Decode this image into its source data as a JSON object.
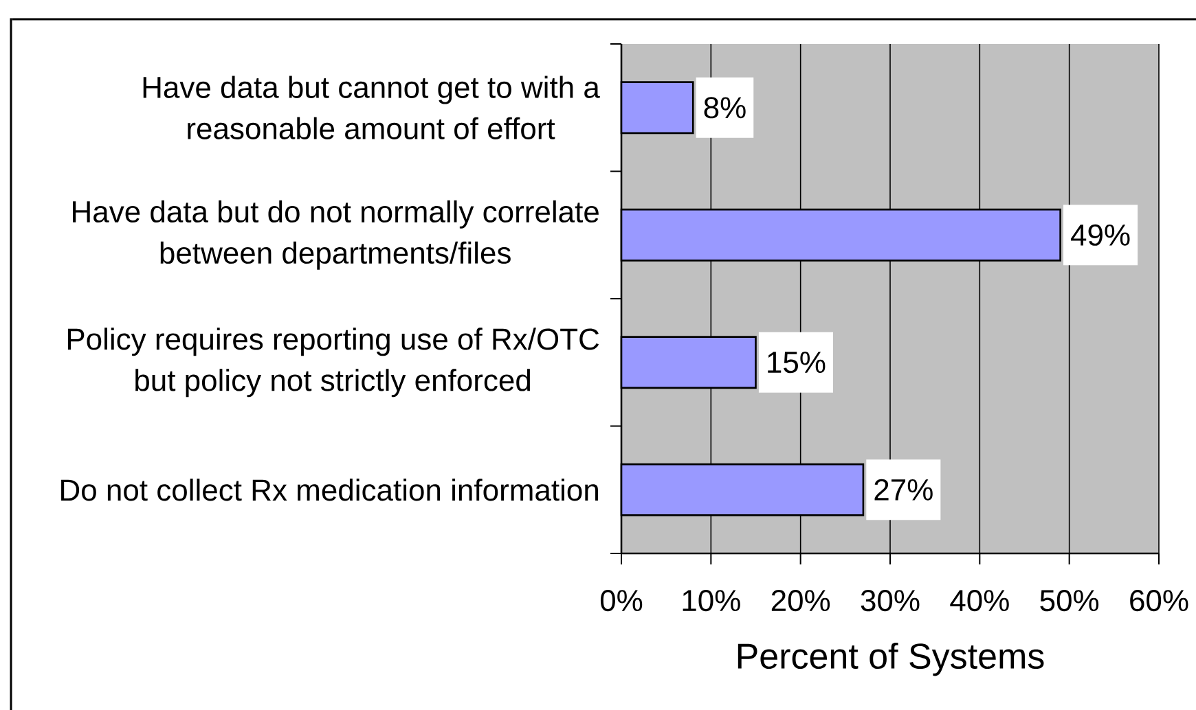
{
  "chart_data": {
    "type": "bar",
    "orientation": "horizontal",
    "categories": [
      "Have data but cannot get to with a reasonable amount of effort",
      "Have data but do not normally correlate between departments/files",
      "Policy requires reporting use of Rx/OTC but policy not strictly enforced",
      "Do not collect Rx medication information"
    ],
    "values": [
      8,
      49,
      15,
      27
    ],
    "color": "#9999ff",
    "value_labels": [
      "8%",
      "49%",
      "15%",
      "27%"
    ],
    "xlabel": "Percent of Systems",
    "xlim": [
      0,
      60
    ],
    "xticks": [
      {
        "value": 0,
        "label": "0%"
      },
      {
        "value": 10,
        "label": "10%"
      },
      {
        "value": 20,
        "label": "20%"
      },
      {
        "value": 30,
        "label": "30%"
      },
      {
        "value": 40,
        "label": "40%"
      },
      {
        "value": 50,
        "label": "50%"
      },
      {
        "value": 60,
        "label": "60%"
      }
    ],
    "grid": "x"
  }
}
